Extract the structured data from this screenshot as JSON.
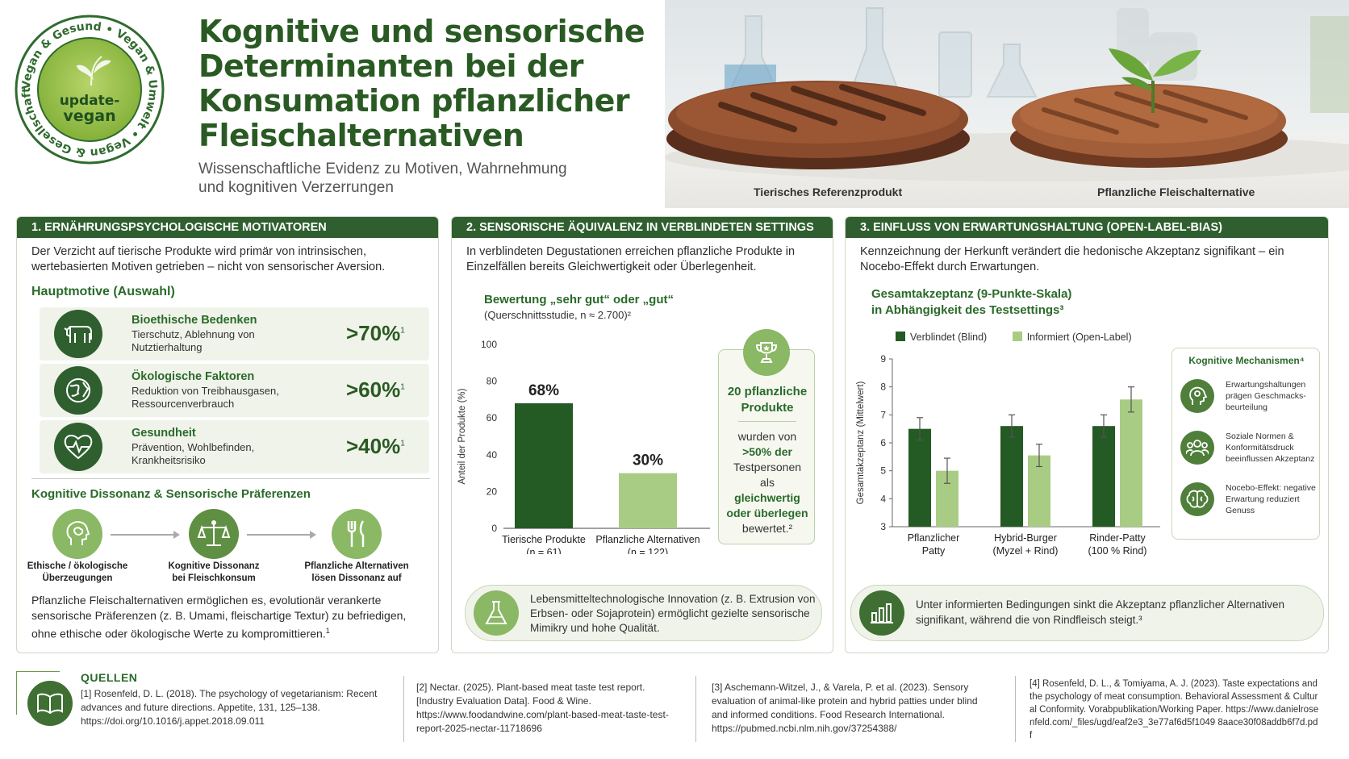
{
  "badge": {
    "ring_text": "Vegan & Gesund • Vegan & Umwelt • Vegan & Gesellschaft • Vegan & Klima •",
    "logo_line1": "update-",
    "logo_line2": "vegan"
  },
  "header": {
    "title_line1": "Kognitive und sensorische",
    "title_line2": "Determinanten bei der",
    "title_line3": "Konsumation pflanzlicher",
    "title_line4": "Fleischalternativen",
    "subtitle_line1": "Wissenschaftliche Evidenz zu Motiven, Wahrnehmung",
    "subtitle_line2": "und kognitiven Verzerrungen",
    "caption_left": "Tierisches Referenzprodukt",
    "caption_right": "Pflanzliche Fleischalternative"
  },
  "panel1": {
    "heading": "1. ERNÄHRUNGSPSYCHOLOGISCHE MOTIVATOREN",
    "intro": "Der Verzicht auf tierische Produkte wird primär von intrinsischen, wertebasierten Motiven getrieben – nicht von sensorischer Aversion.",
    "motives_heading": "Hauptmotive (Auswahl)",
    "motives": [
      {
        "title": "Bioethische Bedenken",
        "desc": "Tierschutz, Ablehnung von Nutztierhaltung",
        "percent": ">70%",
        "ref": "1",
        "icon": "cow-icon"
      },
      {
        "title": "Ökologische Faktoren",
        "desc": "Reduktion von Treibhausgasen, Ressourcenverbrauch",
        "percent": ">60%",
        "ref": "1",
        "icon": "globe-icon"
      },
      {
        "title": "Gesundheit",
        "desc": "Prävention, Wohlbefinden, Krankheitsrisiko",
        "percent": ">40%",
        "ref": "1",
        "icon": "heart-pulse-icon"
      }
    ],
    "dissonance_heading": "Kognitive Dissonanz & Sensorische Präferenzen",
    "flow": [
      {
        "label_line1": "Ethische / ökologische",
        "label_line2": "Überzeugungen",
        "icon": "brain-head-icon"
      },
      {
        "label_line1": "Kognitive Dissonanz",
        "label_line2": "bei Fleischkonsum",
        "icon": "scales-icon"
      },
      {
        "label_line1": "Pflanzliche Alternativen",
        "label_line2": "lösen Dissonanz auf",
        "icon": "fork-knife-icon"
      }
    ],
    "conclusion": "Pflanzliche Fleischalternativen ermöglichen es, evolutionär verankerte sensorische Präferenzen (z. B. Umami, fleischartige Textur) zu befriedigen, ohne ethische oder ökologische Werte zu kompromittieren.",
    "conclusion_ref": "1"
  },
  "panel2": {
    "heading": "2. SENSORISCHE ÄQUIVALENZ IN VERBLINDETEN SETTINGS",
    "intro": "In verblindeten Degustationen erreichen pflanzliche Produkte in Einzelfällen bereits Gleichwertigkeit oder Überlegenheit.",
    "chart_title": "Bewertung „sehr gut“ oder „gut“",
    "chart_subtitle": "(Querschnittsstudie, n ≈ 2.700)²",
    "box_title": "20 pflanzliche Produkte",
    "box_l1": "wurden von",
    "box_l2": ">50% der",
    "box_l3": "Testpersonen",
    "box_l4": "als",
    "box_l5": "gleichwertig",
    "box_l6": "oder überlegen",
    "box_l7": "bewertet.²",
    "innovation": "Lebensmitteltechnologische Innovation (z. B. Extrusion von Erbsen- oder Sojaprotein) ermöglicht gezielte sensorische Mimikry und hohe Qualität."
  },
  "panel3": {
    "heading": "3. EINFLUSS VON ERWARTUNGSHALTUNG (OPEN-LABEL-BIAS)",
    "intro": "Kennzeichnung der Herkunft verändert die hedonische Akzeptanz signifikant – ein Nocebo-Effekt durch Erwartungen.",
    "chart_title_l1": "Gesamtakzeptanz (9-Punkte-Skala)",
    "chart_title_l2": "in Abhängigkeit des Testsettings³",
    "mech_heading": "Kognitive Mechanismen⁴",
    "mechanisms": [
      {
        "text": "Erwartungshaltungen prägen Geschmacks-beurteilung",
        "icon": "head-idea-icon"
      },
      {
        "text": "Soziale Normen & Konformitätsdruck beeinflussen Akzeptanz",
        "icon": "people-group-icon"
      },
      {
        "text": "Nocebo-Effekt: negative Erwartung reduziert Genuss",
        "icon": "brain-icon"
      }
    ],
    "result": "Unter informierten Bedingungen sinkt die Akzeptanz pflanzlicher Alternativen signifikant, während die von Rindfleisch steigt.³"
  },
  "references": {
    "heading": "QUELLEN",
    "r1": "[1] Rosenfeld, D. L. (2018). The psychology of vegetarianism: Recent advances and future directions. Appetite, 131, 125–138. https://doi.org/10.1016/j.appet.2018.09.011",
    "r2": "[2] Nectar. (2025). Plant-based meat taste test report. [Industry Evaluation Data]. Food & Wine. https://www.foodandwine.com/plant-based-meat-taste-test-report-2025-nectar-11718696",
    "r3": "[3] Aschemann-Witzel, J., & Varela, P. et al. (2023). Sensory evaluation of animal-like protein and hybrid patties under blind and informed conditions. Food Research International. https://pubmed.ncbi.nlm.nih.gov/37254388/",
    "r4": "[4] Rosenfeld, D. L., & Tomiyama, A. J. (2023). Taste expectations and the psychology of meat consumption. Behavioral Assessment & Cultural Conformity. Vorabpublikation/Working Paper. https://www.danielrosenfeld.com/_files/ugd/eaf2e3_3e77af6d5f1049 8aace30f08addb6f7d.pdf"
  },
  "colors": {
    "dark": "#2f5f2f",
    "light": "#a9cc84",
    "bar_dark": "#245a24"
  },
  "chart_data": [
    {
      "type": "bar",
      "ylabel": "Anteil der Produkte (%)",
      "ylim": [
        0,
        100
      ],
      "yticks": [
        0,
        20,
        40,
        60,
        80,
        100
      ],
      "categories": [
        "Tierische Produkte\n(n = 61)",
        "Pflanzliche Alternativen\n(n = 122)"
      ],
      "values": [
        68,
        30
      ],
      "labels": [
        "68%",
        "30%"
      ]
    },
    {
      "type": "bar",
      "ylabel": "Gesamtakzeptanz (Mittelwert)",
      "ylim": [
        3,
        9
      ],
      "yticks": [
        3,
        4,
        5,
        6,
        7,
        8,
        9
      ],
      "categories": [
        "Pflanzlicher\nPatty",
        "Hybrid-Burger\n(Myzel + Rind)",
        "Rinder-Patty\n(100 % Rind)"
      ],
      "series": [
        {
          "name": "Verblindet (Blind)",
          "values": [
            6.5,
            6.6,
            6.6
          ],
          "err": [
            0.4,
            0.4,
            0.4
          ]
        },
        {
          "name": "Informiert (Open-Label)",
          "values": [
            5.0,
            5.55,
            7.55
          ],
          "err": [
            0.45,
            0.4,
            0.45
          ]
        }
      ]
    }
  ]
}
